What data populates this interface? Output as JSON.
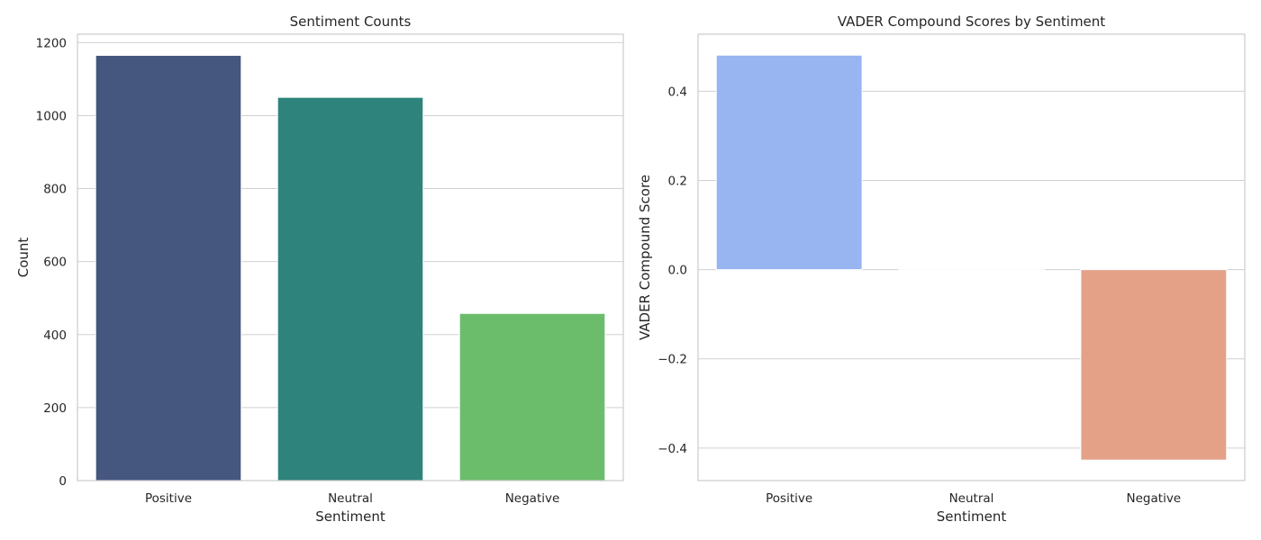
{
  "chart_data": [
    {
      "type": "bar",
      "title": "Sentiment Counts",
      "xlabel": "Sentiment",
      "ylabel": "Count",
      "categories": [
        "Positive",
        "Neutral",
        "Negative"
      ],
      "values": [
        1165,
        1050,
        458
      ],
      "ylim": [
        0,
        1223
      ],
      "yticks": [
        0,
        200,
        400,
        600,
        800,
        1000,
        1200
      ],
      "ytick_labels": [
        "0",
        "200",
        "400",
        "600",
        "800",
        "1000",
        "1200"
      ],
      "colors": [
        "#45567f",
        "#2e837c",
        "#6bbd6c"
      ],
      "grid": true,
      "legend": "none"
    },
    {
      "type": "bar",
      "title": "VADER Compound Scores by Sentiment",
      "xlabel": "Sentiment",
      "ylabel": "VADER Compound Score",
      "categories": [
        "Positive",
        "Neutral",
        "Negative"
      ],
      "values": [
        0.481,
        0.0,
        -0.427
      ],
      "ylim": [
        -0.473,
        0.528
      ],
      "yticks": [
        -0.4,
        -0.2,
        0.0,
        0.2,
        0.4
      ],
      "ytick_labels": [
        "−0.4",
        "−0.2",
        "0.0",
        "0.2",
        "0.4"
      ],
      "colors": [
        "#98b4f1",
        "#dcdcdc",
        "#e4a188"
      ],
      "grid": true,
      "legend": "none"
    }
  ]
}
